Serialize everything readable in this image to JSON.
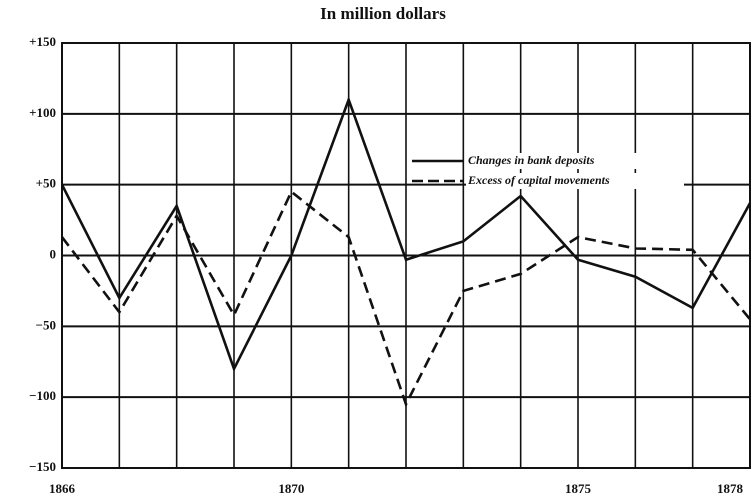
{
  "chart_data": {
    "type": "line",
    "title": "In million dollars",
    "x": [
      1866,
      1867,
      1868,
      1869,
      1870,
      1871,
      1872,
      1873,
      1874,
      1875,
      1876,
      1877,
      1878
    ],
    "series": [
      {
        "name": "Changes in bank deposits",
        "color": "#111111",
        "dash": false,
        "values": [
          50,
          -30,
          35,
          -80,
          0,
          110,
          -3,
          10,
          42,
          -3,
          -15,
          -37,
          37
        ]
      },
      {
        "name": "Excess of capital movements",
        "color": "#111111",
        "dash": true,
        "values": [
          13,
          -40,
          28,
          -42,
          45,
          13,
          -105,
          -25,
          -13,
          13,
          5,
          4,
          -45
        ]
      }
    ],
    "xlim": [
      1866,
      1878
    ],
    "xticks": [
      1866,
      1870,
      1875,
      1878
    ],
    "ylim": [
      -150,
      150
    ],
    "yticks": [
      {
        "value": 150,
        "label": "+150"
      },
      {
        "value": 100,
        "label": "+100"
      },
      {
        "value": 50,
        "label": "+50"
      },
      0,
      {
        "value": -50,
        "label": "−50"
      },
      {
        "value": -100,
        "label": "−100"
      },
      {
        "value": -150,
        "label": "−150"
      }
    ],
    "grid": true,
    "legend": "upper right"
  }
}
